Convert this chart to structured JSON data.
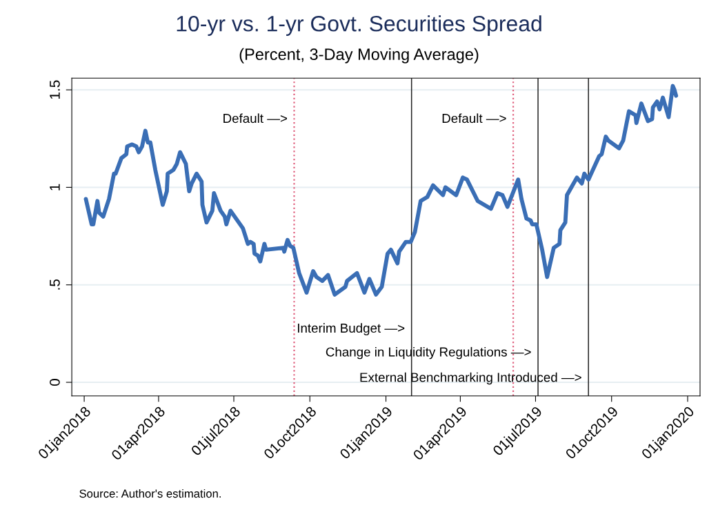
{
  "chart_data": {
    "type": "line",
    "title": "10-yr vs. 1-yr Govt. Securities Spread",
    "subtitle": "(Percent, 3-Day Moving Average)",
    "x": [
      "2018-01-03",
      "2018-01-10",
      "2018-01-12",
      "2018-01-17",
      "2018-01-19",
      "2018-01-24",
      "2018-01-31",
      "2018-02-06",
      "2018-02-08",
      "2018-02-15",
      "2018-02-21",
      "2018-02-22",
      "2018-02-28",
      "2018-03-05",
      "2018-03-08",
      "2018-03-12",
      "2018-03-16",
      "2018-03-19",
      "2018-03-22",
      "2018-03-28",
      "2018-04-06",
      "2018-04-11",
      "2018-04-12",
      "2018-04-19",
      "2018-04-23",
      "2018-04-27",
      "2018-05-04",
      "2018-05-08",
      "2018-05-11",
      "2018-05-17",
      "2018-05-23",
      "2018-05-24",
      "2018-05-29",
      "2018-06-05",
      "2018-06-07",
      "2018-06-15",
      "2018-06-20",
      "2018-06-22",
      "2018-06-27",
      "2018-07-07",
      "2018-07-12",
      "2018-07-18",
      "2018-07-21",
      "2018-07-25",
      "2018-07-26",
      "2018-07-30",
      "2018-08-02",
      "2018-08-07",
      "2018-08-09",
      "2018-08-30",
      "2018-08-31",
      "2018-09-04",
      "2018-09-07",
      "2018-09-11",
      "2018-09-18",
      "2018-09-27",
      "2018-10-05",
      "2018-10-09",
      "2018-10-16",
      "2018-10-23",
      "2018-10-31",
      "2018-11-13",
      "2018-11-15",
      "2018-11-27",
      "2018-12-06",
      "2018-12-12",
      "2018-12-20",
      "2018-12-27",
      "2019-01-03",
      "2019-01-07",
      "2019-01-15",
      "2019-01-17",
      "2019-01-25",
      "2019-01-31",
      "2019-02-05",
      "2019-02-12",
      "2019-02-20",
      "2019-02-27",
      "2019-03-11",
      "2019-03-14",
      "2019-03-27",
      "2019-04-04",
      "2019-04-09",
      "2019-04-22",
      "2019-05-08",
      "2019-05-16",
      "2019-05-22",
      "2019-05-28",
      "2019-06-10",
      "2019-06-14",
      "2019-06-20",
      "2019-06-25",
      "2019-06-27",
      "2019-07-02",
      "2019-07-09",
      "2019-07-15",
      "2019-07-23",
      "2019-07-30",
      "2019-07-31",
      "2019-08-06",
      "2019-08-08",
      "2019-08-20",
      "2019-08-26",
      "2019-08-29",
      "2019-09-03",
      "2019-09-16",
      "2019-09-19",
      "2019-09-24",
      "2019-09-27",
      "2019-10-10",
      "2019-10-15",
      "2019-10-22",
      "2019-10-30",
      "2019-10-31",
      "2019-11-06",
      "2019-11-14",
      "2019-11-19",
      "2019-11-20",
      "2019-11-25",
      "2019-11-28",
      "2019-12-02",
      "2019-12-09",
      "2019-12-14",
      "2019-12-16",
      "2019-12-18"
    ],
    "series": [
      {
        "color": "#3a6eb5",
        "values": [
          0.94,
          0.81,
          0.81,
          0.93,
          0.87,
          0.85,
          0.94,
          1.07,
          1.07,
          1.15,
          1.17,
          1.21,
          1.22,
          1.21,
          1.18,
          1.21,
          1.29,
          1.23,
          1.23,
          1.09,
          0.91,
          0.98,
          1.07,
          1.09,
          1.12,
          1.18,
          1.12,
          0.98,
          1.02,
          1.07,
          1.03,
          0.91,
          0.82,
          0.88,
          0.97,
          0.88,
          0.85,
          0.81,
          0.88,
          0.82,
          0.79,
          0.71,
          0.72,
          0.71,
          0.66,
          0.65,
          0.62,
          0.71,
          0.68,
          0.69,
          0.67,
          0.73,
          0.7,
          0.69,
          0.56,
          0.46,
          0.57,
          0.54,
          0.52,
          0.55,
          0.45,
          0.49,
          0.52,
          0.56,
          0.46,
          0.53,
          0.45,
          0.49,
          0.66,
          0.68,
          0.61,
          0.67,
          0.72,
          0.72,
          0.77,
          0.93,
          0.95,
          1.01,
          0.96,
          1.0,
          0.96,
          1.05,
          1.04,
          0.93,
          0.89,
          0.97,
          0.96,
          0.9,
          1.04,
          0.94,
          0.84,
          0.83,
          0.81,
          0.81,
          0.68,
          0.54,
          0.69,
          0.71,
          0.78,
          0.82,
          0.96,
          1.05,
          1.02,
          1.07,
          1.04,
          1.16,
          1.17,
          1.26,
          1.24,
          1.2,
          1.24,
          1.39,
          1.37,
          1.33,
          1.43,
          1.34,
          1.35,
          1.41,
          1.44,
          1.4,
          1.46,
          1.36,
          1.52,
          1.5,
          1.47
        ]
      }
    ],
    "xlim": [
      "2017-12-17",
      "2020-01-16"
    ],
    "xticks": [
      {
        "value": "2018-01-01",
        "label": "01jan2018"
      },
      {
        "value": "2018-04-01",
        "label": "01apr2018"
      },
      {
        "value": "2018-07-01",
        "label": "01jul2018"
      },
      {
        "value": "2018-10-01",
        "label": "01oct2018"
      },
      {
        "value": "2019-01-01",
        "label": "01jan2019"
      },
      {
        "value": "2019-04-01",
        "label": "01apr2019"
      },
      {
        "value": "2019-07-01",
        "label": "01jul2019"
      },
      {
        "value": "2019-10-01",
        "label": "01oct2019"
      },
      {
        "value": "2020-01-01",
        "label": "01jan2020"
      }
    ],
    "ylim": [
      -0.07,
      1.56
    ],
    "yticks": [
      0,
      {
        "value": 0.5,
        "label": ".5"
      },
      1,
      1.5
    ],
    "grid": "y",
    "ref_lines": [
      {
        "axis": "x",
        "value": "2018-09-12",
        "label": "Default —>",
        "color": "#e0607e",
        "line_style": "dotted"
      },
      {
        "axis": "x",
        "value": "2019-02-01",
        "label": "Interim Budget —>",
        "color": "#222222",
        "line_style": "solid"
      },
      {
        "axis": "x",
        "value": "2019-06-04",
        "label": "Default —>",
        "color": "#e0607e",
        "line_style": "dotted"
      },
      {
        "axis": "x",
        "value": "2019-07-04",
        "label": "Change in Liquidity Regulations —>",
        "color": "#222222",
        "line_style": "solid"
      },
      {
        "axis": "x",
        "value": "2019-09-03",
        "label": "External Benchmarking Introduced —>",
        "color": "#222222",
        "line_style": "solid"
      }
    ],
    "annotations": [
      "Source: Author's estimation."
    ]
  }
}
